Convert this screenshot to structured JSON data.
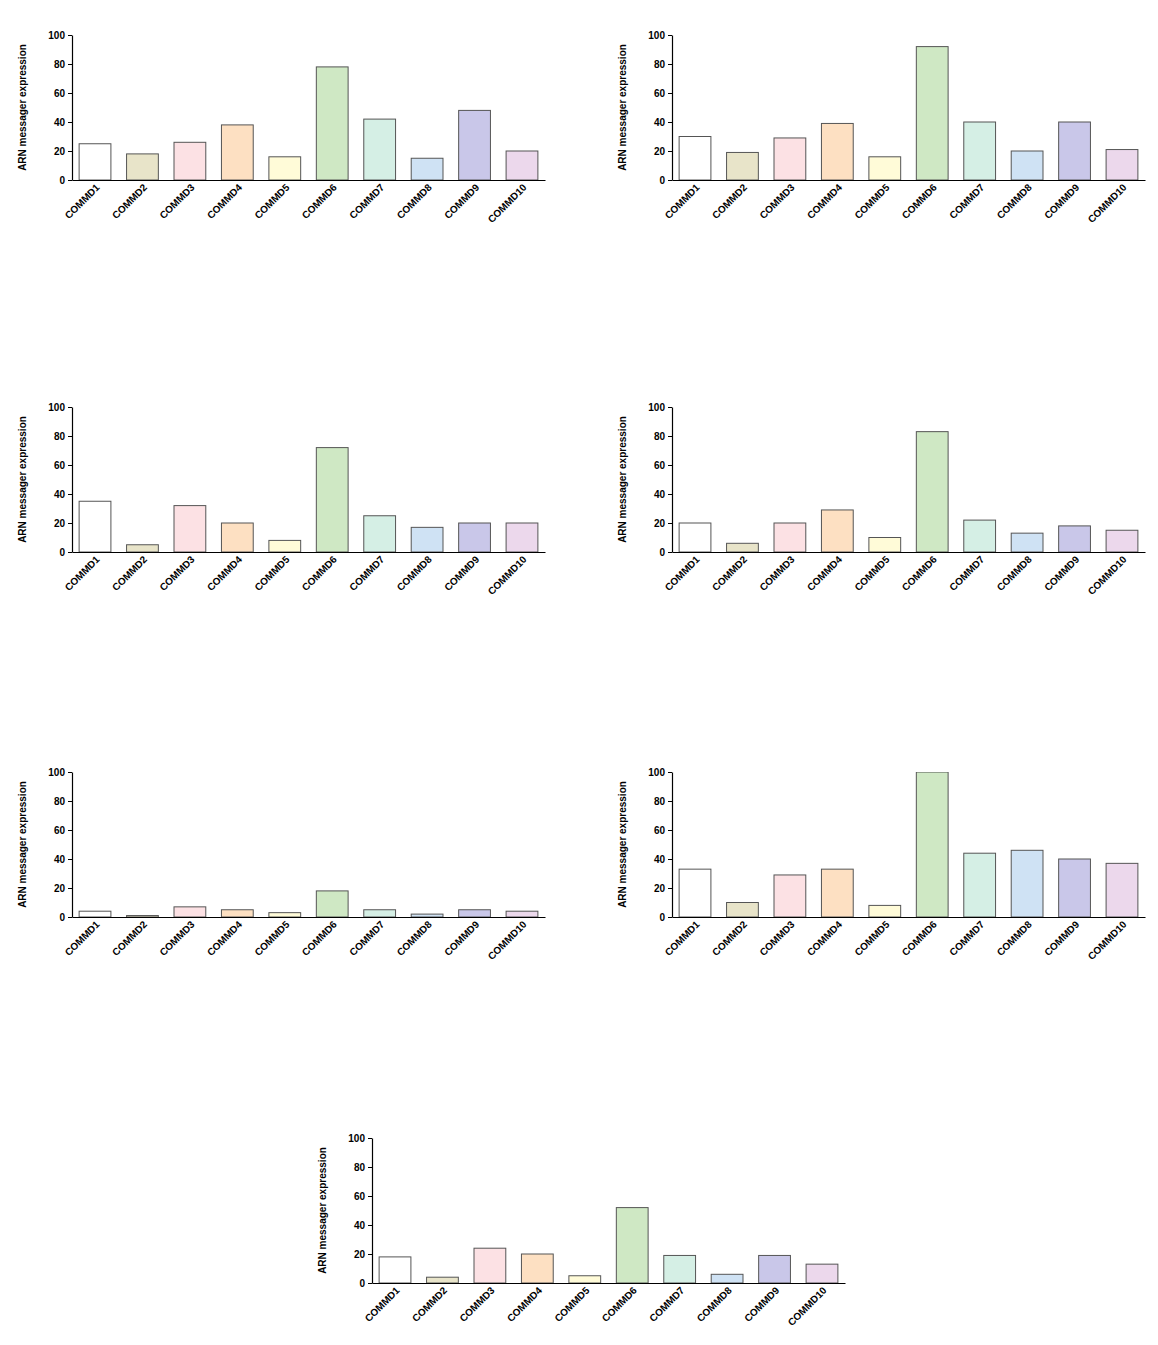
{
  "chart_data": [
    {
      "type": "bar",
      "y_label": "ARN messager expression",
      "categories": [
        "COMMD1",
        "COMMD2",
        "COMMD3",
        "COMMD4",
        "COMMD5",
        "COMMD6",
        "COMMD7",
        "COMMD8",
        "COMMD9",
        "COMMD10"
      ],
      "values": [
        25,
        18,
        26,
        38,
        16,
        78,
        42,
        15,
        48,
        20
      ],
      "colors": [
        "#ffffff",
        "#e8e4c9",
        "#fce1e4",
        "#fde0c2",
        "#fffbd8",
        "#cfe8c4",
        "#d5efe5",
        "#cfe2f4",
        "#c9c7e9",
        "#ecd8ec"
      ],
      "ylim": [
        0,
        100
      ],
      "yticks": [
        0,
        20,
        40,
        60,
        80,
        100
      ],
      "grid": false
    },
    {
      "type": "bar",
      "y_label": "ARN messager expression",
      "categories": [
        "COMMD1",
        "COMMD2",
        "COMMD3",
        "COMMD4",
        "COMMD5",
        "COMMD6",
        "COMMD7",
        "COMMD8",
        "COMMD9",
        "COMMD10"
      ],
      "values": [
        30,
        19,
        29,
        39,
        16,
        92,
        40,
        20,
        40,
        21
      ],
      "colors": [
        "#ffffff",
        "#e8e4c9",
        "#fce1e4",
        "#fde0c2",
        "#fffbd8",
        "#cfe8c4",
        "#d5efe5",
        "#cfe2f4",
        "#c9c7e9",
        "#ecd8ec"
      ],
      "ylim": [
        0,
        100
      ],
      "yticks": [
        0,
        20,
        40,
        60,
        80,
        100
      ],
      "grid": false
    },
    {
      "type": "bar",
      "y_label": "ARN messager expression",
      "categories": [
        "COMMD1",
        "COMMD2",
        "COMMD3",
        "COMMD4",
        "COMMD5",
        "COMMD6",
        "COMMD7",
        "COMMD8",
        "COMMD9",
        "COMMD10"
      ],
      "values": [
        35,
        5,
        32,
        20,
        8,
        72,
        25,
        17,
        20,
        20
      ],
      "colors": [
        "#ffffff",
        "#e8e4c9",
        "#fce1e4",
        "#fde0c2",
        "#fffbd8",
        "#cfe8c4",
        "#d5efe5",
        "#cfe2f4",
        "#c9c7e9",
        "#ecd8ec"
      ],
      "ylim": [
        0,
        100
      ],
      "yticks": [
        0,
        20,
        40,
        60,
        80,
        100
      ],
      "grid": false
    },
    {
      "type": "bar",
      "y_label": "ARN messager expression",
      "categories": [
        "COMMD1",
        "COMMD2",
        "COMMD3",
        "COMMD4",
        "COMMD5",
        "COMMD6",
        "COMMD7",
        "COMMD8",
        "COMMD9",
        "COMMD10"
      ],
      "values": [
        20,
        6,
        20,
        29,
        10,
        83,
        22,
        13,
        18,
        15
      ],
      "colors": [
        "#ffffff",
        "#e8e4c9",
        "#fce1e4",
        "#fde0c2",
        "#fffbd8",
        "#cfe8c4",
        "#d5efe5",
        "#cfe2f4",
        "#c9c7e9",
        "#ecd8ec"
      ],
      "ylim": [
        0,
        100
      ],
      "yticks": [
        0,
        20,
        40,
        60,
        80,
        100
      ],
      "grid": false
    },
    {
      "type": "bar",
      "y_label": "ARN messager expression",
      "categories": [
        "COMMD1",
        "COMMD2",
        "COMMD3",
        "COMMD4",
        "COMMD5",
        "COMMD6",
        "COMMD7",
        "COMMD8",
        "COMMD9",
        "COMMD10"
      ],
      "values": [
        4,
        1,
        7,
        5,
        3,
        18,
        5,
        2,
        5,
        4
      ],
      "colors": [
        "#ffffff",
        "#e8e4c9",
        "#fce1e4",
        "#fde0c2",
        "#fffbd8",
        "#cfe8c4",
        "#d5efe5",
        "#cfe2f4",
        "#c9c7e9",
        "#ecd8ec"
      ],
      "ylim": [
        0,
        100
      ],
      "yticks": [
        0,
        20,
        40,
        60,
        80,
        100
      ],
      "grid": false
    },
    {
      "type": "bar",
      "y_label": "ARN messager expression",
      "categories": [
        "COMMD1",
        "COMMD2",
        "COMMD3",
        "COMMD4",
        "COMMD5",
        "COMMD6",
        "COMMD7",
        "COMMD8",
        "COMMD9",
        "COMMD10"
      ],
      "values": [
        33,
        10,
        29,
        33,
        8,
        100,
        44,
        46,
        40,
        37
      ],
      "colors": [
        "#ffffff",
        "#e8e4c9",
        "#fce1e4",
        "#fde0c2",
        "#fffbd8",
        "#cfe8c4",
        "#d5efe5",
        "#cfe2f4",
        "#c9c7e9",
        "#ecd8ec"
      ],
      "ylim": [
        0,
        100
      ],
      "yticks": [
        0,
        20,
        40,
        60,
        80,
        100
      ],
      "grid": false
    },
    {
      "type": "bar",
      "y_label": "ARN messager expression",
      "categories": [
        "COMMD1",
        "COMMD2",
        "COMMD3",
        "COMMD4",
        "COMMD5",
        "COMMD6",
        "COMMD7",
        "COMMD8",
        "COMMD9",
        "COMMD10"
      ],
      "values": [
        18,
        4,
        24,
        20,
        5,
        52,
        19,
        6,
        19,
        13
      ],
      "colors": [
        "#ffffff",
        "#e8e4c9",
        "#fce1e4",
        "#fde0c2",
        "#fffbd8",
        "#cfe8c4",
        "#d5efe5",
        "#cfe2f4",
        "#c9c7e9",
        "#ecd8ec"
      ],
      "ylim": [
        0,
        100
      ],
      "yticks": [
        0,
        20,
        40,
        60,
        80,
        100
      ],
      "grid": false
    }
  ]
}
